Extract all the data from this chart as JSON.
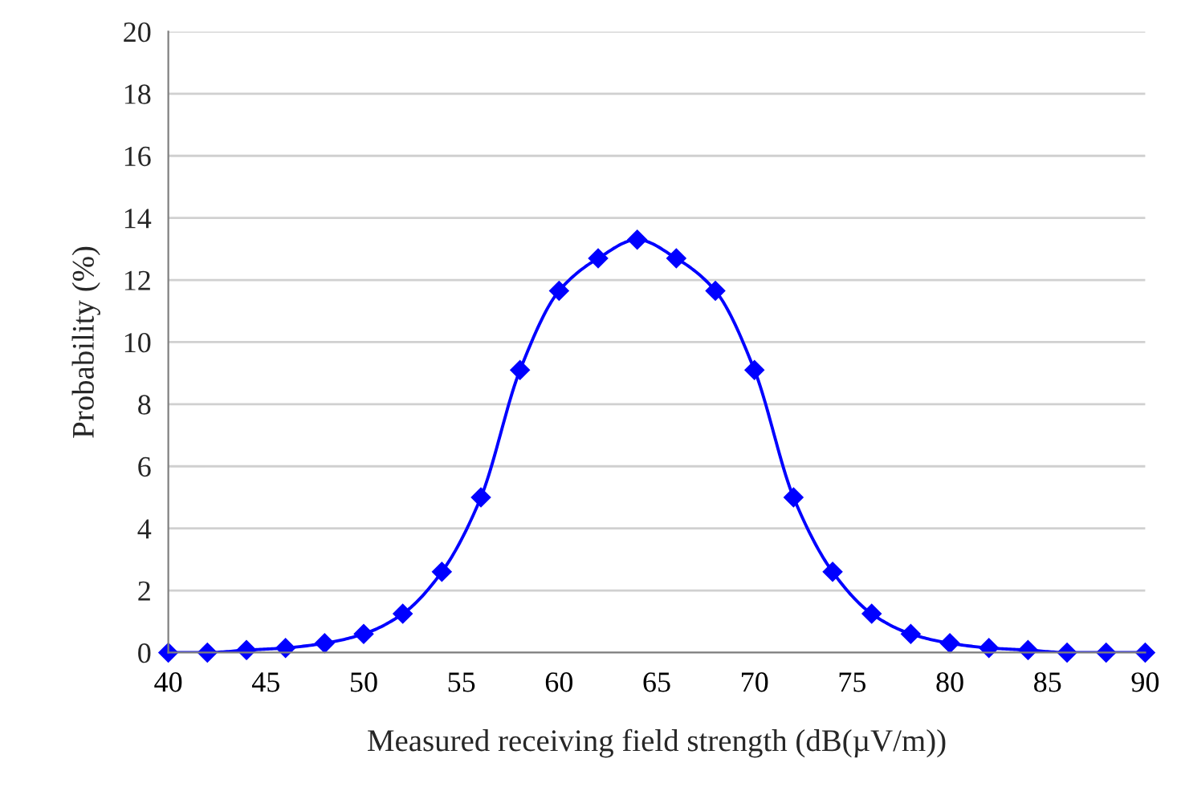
{
  "chart_data": {
    "type": "line",
    "xlabel": "Measured receiving field strength (dB(µV/m))",
    "ylabel": "Probability (%)",
    "x": [
      40,
      42,
      44,
      46,
      48,
      50,
      52,
      54,
      56,
      58,
      60,
      62,
      64,
      66,
      68,
      70,
      72,
      74,
      76,
      78,
      80,
      82,
      84,
      86,
      88,
      90
    ],
    "series": [
      {
        "color": "#0000ff",
        "values": [
          0,
          0,
          0.08,
          0.15,
          0.3,
          0.6,
          1.25,
          2.6,
          5.0,
          9.1,
          11.65,
          12.7,
          13.3,
          12.7,
          11.65,
          9.1,
          5.0,
          2.6,
          1.25,
          0.6,
          0.3,
          0.15,
          0.08,
          0,
          0,
          0
        ]
      }
    ],
    "xlim": [
      40,
      90
    ],
    "xticks": [
      40,
      45,
      50,
      55,
      60,
      65,
      70,
      75,
      80,
      85,
      90
    ],
    "ylim": [
      0,
      20
    ],
    "yticks": [
      0,
      2,
      4,
      6,
      8,
      10,
      12,
      14,
      16,
      18,
      20
    ],
    "grid": "y",
    "marker": "diamond",
    "line_style": "solid"
  }
}
